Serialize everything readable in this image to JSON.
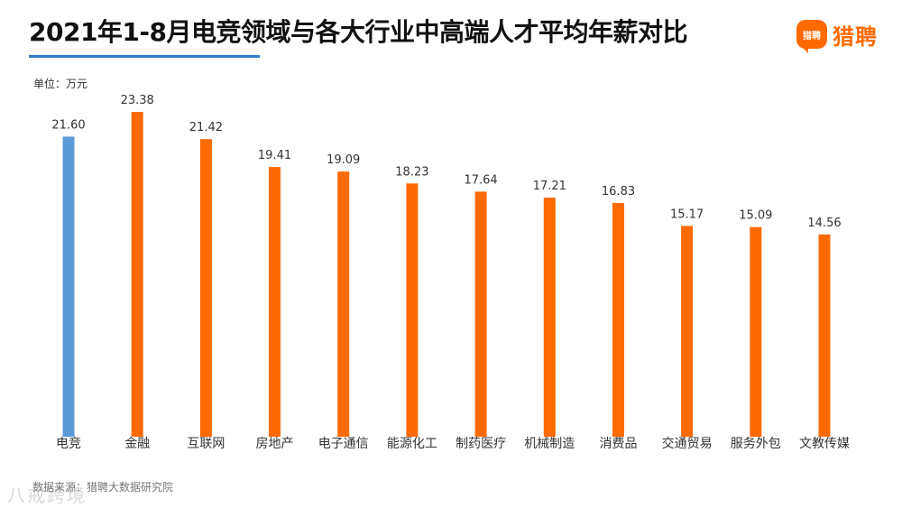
{
  "header": {
    "title": "2021年1-8月电竞领域与各大行业中高端人才平均年薪对比",
    "unit_label": "单位：万元"
  },
  "brand": {
    "logo_text": "猎聘",
    "logo_mark_text": "猎聘",
    "color": "#ff6a00"
  },
  "footer": {
    "source": "数据来源：猎聘大数据研究院",
    "watermark": "八戒跨境"
  },
  "colors": {
    "highlight": "#5b9bd5",
    "bar": "#ff6a00",
    "title_rule": "#2f7fc6"
  },
  "chart_data": {
    "type": "bar",
    "title": "2021年1-8月电竞领域与各大行业中高端人才平均年薪对比",
    "ylabel": "单位：万元",
    "xlabel": "",
    "categories": [
      "电竞",
      "金融",
      "互联网",
      "房地产",
      "电子通信",
      "能源化工",
      "制药医疗",
      "机械制造",
      "消费品",
      "交通贸易",
      "服务外包",
      "文教传媒"
    ],
    "values": [
      21.6,
      23.38,
      21.42,
      19.41,
      19.09,
      18.23,
      17.64,
      17.21,
      16.83,
      15.17,
      15.09,
      14.56
    ],
    "value_labels": [
      "21.60",
      "23.38",
      "21.42",
      "19.41",
      "19.09",
      "18.23",
      "17.64",
      "17.21",
      "16.83",
      "15.17",
      "15.09",
      "14.56"
    ],
    "highlight_index": 0,
    "ylim": [
      0,
      23.38
    ],
    "grid": false,
    "legend": "none"
  }
}
